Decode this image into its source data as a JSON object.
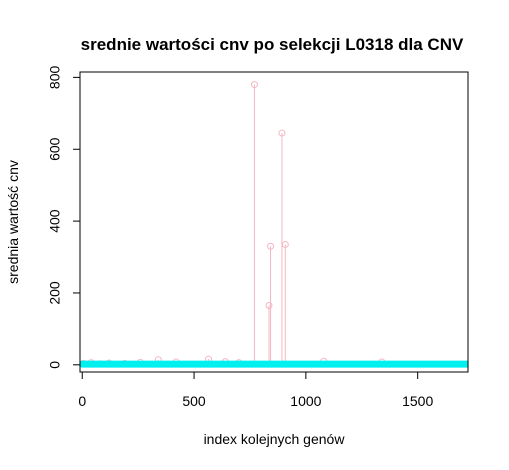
{
  "chart_data": {
    "type": "scatter",
    "title": "srednie wartości cnv po selekcji L0318 dla CNV",
    "xlabel": "index kolejnych genów",
    "ylabel": "srednia wartość cnv",
    "xlim": [
      -10,
      1725
    ],
    "ylim": [
      -20,
      815
    ],
    "x_ticks": [
      0,
      500,
      1000,
      1500
    ],
    "y_ticks": [
      0,
      200,
      400,
      600,
      800
    ],
    "grid": false,
    "legend": "none",
    "colors": {
      "spikes": "#f4b6c2",
      "baseline": "#00f0f0"
    },
    "spikes": {
      "name": "",
      "x": [
        5,
        40,
        80,
        120,
        190,
        260,
        340,
        420,
        565,
        640,
        700,
        770,
        835,
        842,
        893,
        908,
        1080,
        1340
      ],
      "y": [
        4,
        6,
        3,
        5,
        4,
        7,
        14,
        8,
        16,
        9,
        6,
        780,
        165,
        330,
        645,
        335,
        10,
        8
      ]
    },
    "baseline": {
      "name": "",
      "x_range": [
        0,
        1725
      ],
      "y": 2
    }
  }
}
